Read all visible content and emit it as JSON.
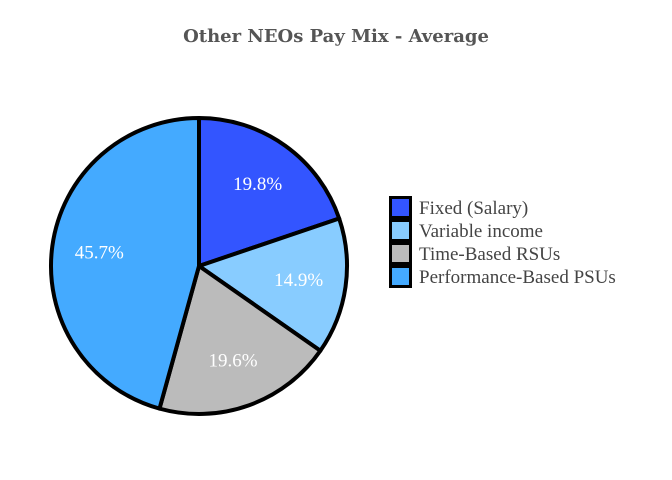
{
  "chart_data": {
    "type": "pie",
    "title": "Other NEOs Pay Mix - Average",
    "categories": [
      "Fixed (Salary)",
      "Variable income",
      "Time-Based RSUs",
      "Performance-Based PSUs"
    ],
    "values": [
      19.8,
      14.9,
      19.6,
      45.7
    ],
    "value_labels": [
      "19.8%",
      "14.9%",
      "19.6%",
      "45.7%"
    ],
    "colors": [
      "#3355ff",
      "#88ccff",
      "#bbbbbb",
      "#44aaff"
    ],
    "start": "top",
    "direction": "clockwise",
    "legend": {
      "position": "right"
    }
  }
}
